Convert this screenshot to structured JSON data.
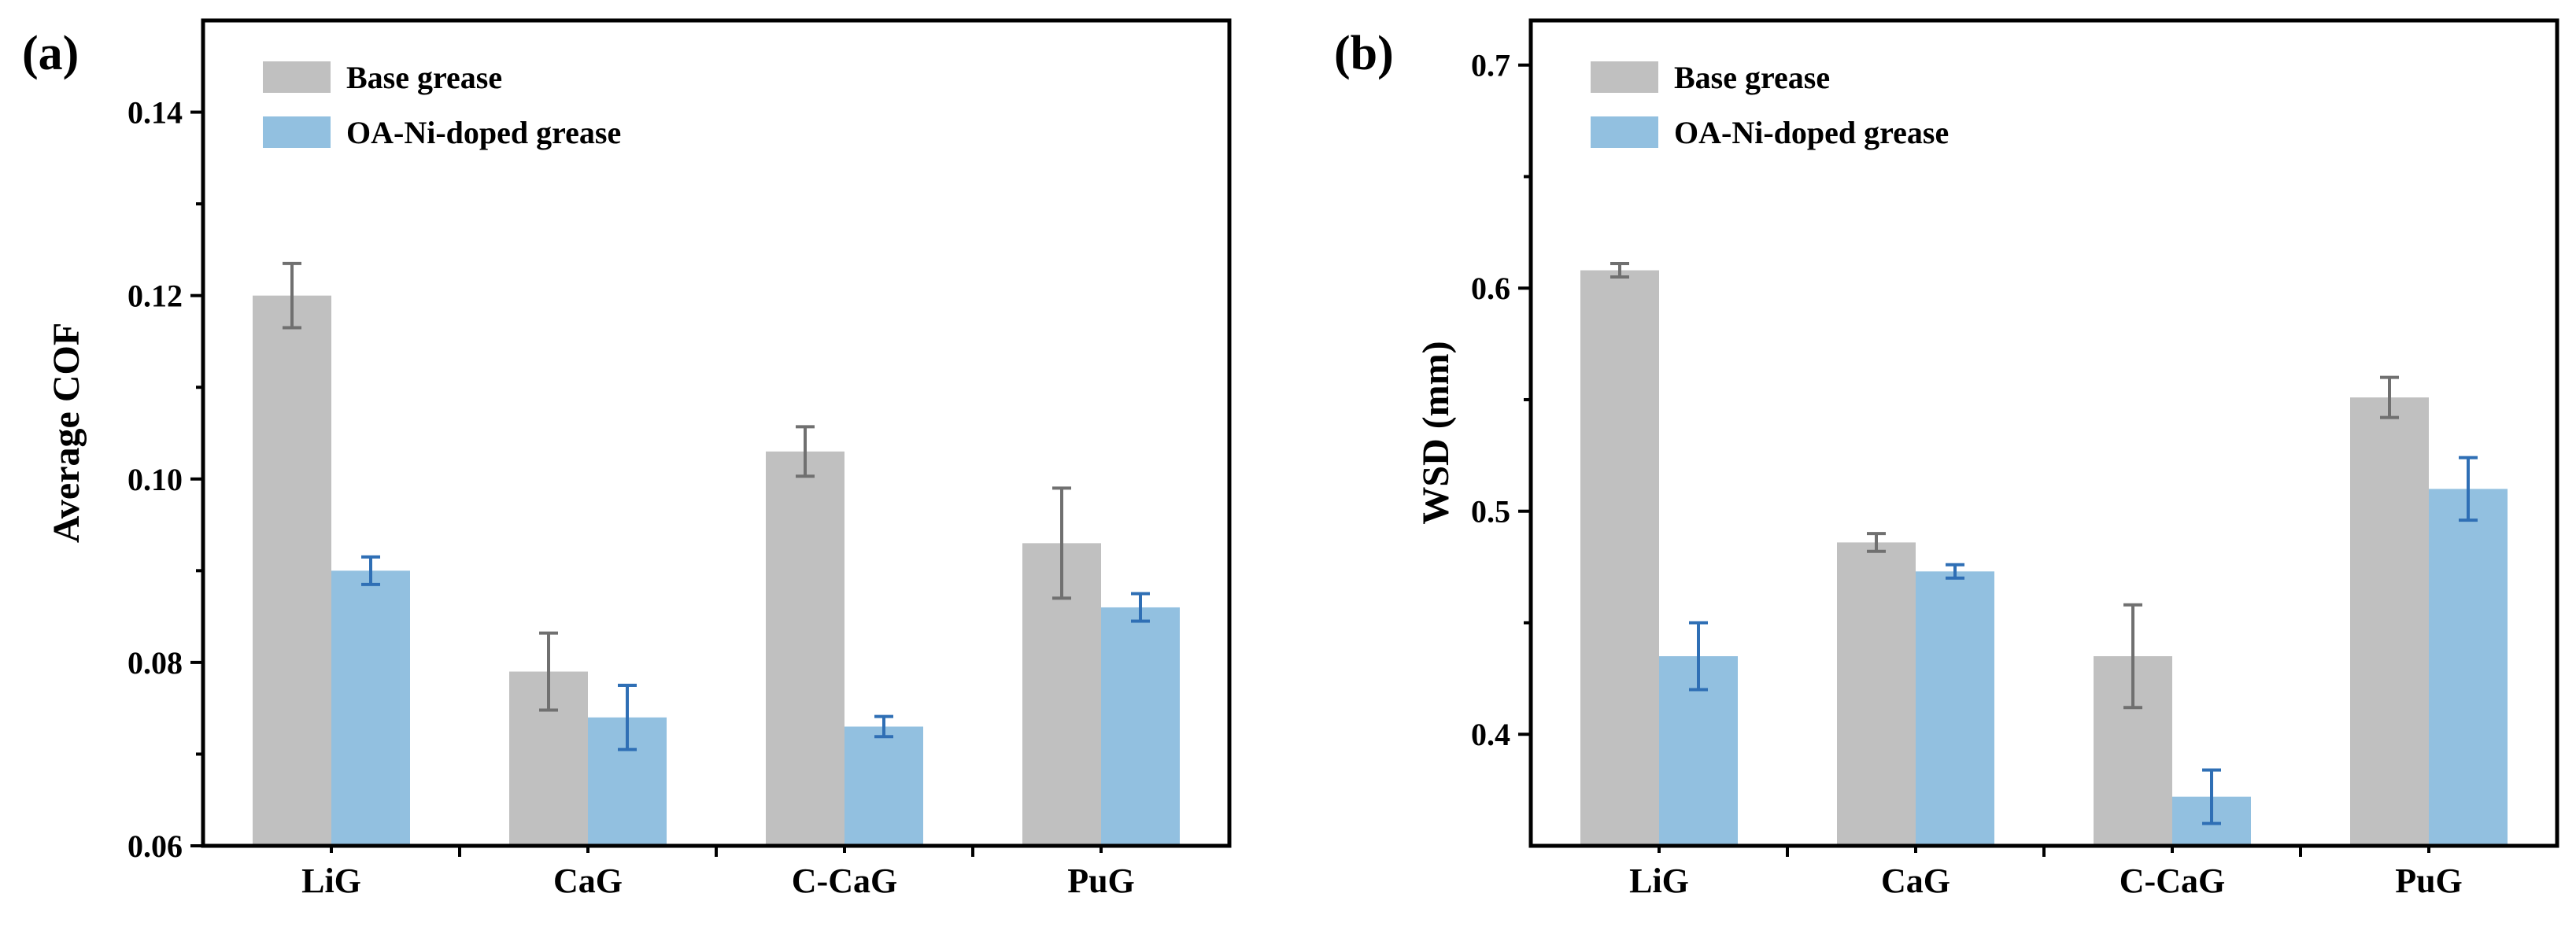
{
  "colors": {
    "base": "#c0c0c0",
    "doped": "#92c0e0",
    "base_err": "#707070",
    "doped_err": "#2f6fb5",
    "axis": "#000000"
  },
  "chart_data": [
    {
      "type": "bar",
      "panel_label": "(a)",
      "title": "",
      "xlabel": "",
      "ylabel": "Average COF",
      "categories": [
        "LiG",
        "CaG",
        "C-CaG",
        "PuG"
      ],
      "ylim": [
        0.06,
        0.15
      ],
      "yticks": [
        0.06,
        0.08,
        0.1,
        0.12,
        0.14
      ],
      "ytick_labels": [
        "0.06",
        "0.08",
        "0.10",
        "0.12",
        "0.14"
      ],
      "legend_position": "top-left",
      "series": [
        {
          "name": "Base grease",
          "values": [
            0.12,
            0.079,
            0.103,
            0.093
          ],
          "errors": [
            0.0035,
            0.0042,
            0.0027,
            0.006
          ]
        },
        {
          "name": "OA-Ni-doped grease",
          "values": [
            0.09,
            0.074,
            0.073,
            0.086
          ],
          "errors": [
            0.0015,
            0.0035,
            0.0011,
            0.0015
          ]
        }
      ]
    },
    {
      "type": "bar",
      "panel_label": "(b)",
      "title": "",
      "xlabel": "",
      "ylabel": "WSD (mm)",
      "categories": [
        "LiG",
        "CaG",
        "C-CaG",
        "PuG"
      ],
      "ylim": [
        0.35,
        0.72
      ],
      "yticks": [
        0.4,
        0.5,
        0.6,
        0.7
      ],
      "ytick_labels": [
        "0.4",
        "0.5",
        "0.6",
        "0.7"
      ],
      "legend_position": "top-left",
      "series": [
        {
          "name": "Base grease",
          "values": [
            0.608,
            0.486,
            0.435,
            0.551
          ],
          "errors": [
            0.003,
            0.004,
            0.023,
            0.009
          ]
        },
        {
          "name": "OA-Ni-doped grease",
          "values": [
            0.435,
            0.473,
            0.372,
            0.51
          ],
          "errors": [
            0.015,
            0.003,
            0.012,
            0.014
          ]
        }
      ]
    }
  ]
}
